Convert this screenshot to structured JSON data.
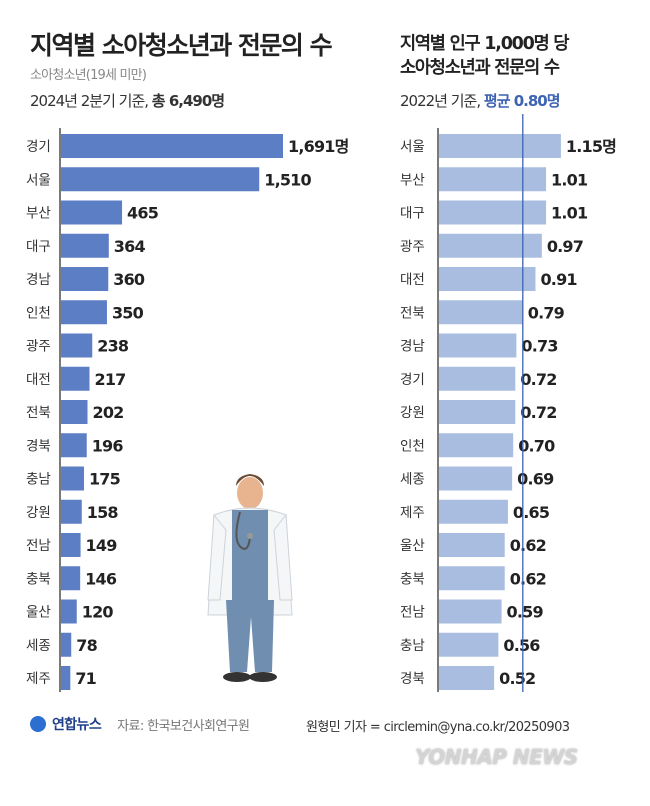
{
  "left_header": {
    "title": "지역별 소아청소년과 전문의 수",
    "subtitle": "소아청소년(19세 미만)",
    "basis": "2024년 2분기 기준, ",
    "total": "총 6,490명"
  },
  "right_header": {
    "title_line1": "지역별 인구 1,000명 당",
    "title_line2": "소아청소년과 전문의 수",
    "basis": "2022년 기준, ",
    "average": "평균 0.80명"
  },
  "footer": {
    "logo": "연합뉴스",
    "source": "자료: 한국보건사회연구원",
    "credit": "원형민 기자 = circlemin@yna.co.kr/20250903",
    "watermark": "YONHAP NEWS"
  },
  "colors": {
    "left_bar": "#5b7ec5",
    "right_bar": "#a9bde0",
    "average_line": "#3d63b3",
    "accent": "#3d63b3"
  },
  "chart_data": [
    {
      "type": "bar",
      "orientation": "horizontal",
      "unit": "명",
      "categories": [
        "경기",
        "서울",
        "부산",
        "대구",
        "경남",
        "인천",
        "광주",
        "대전",
        "전북",
        "경북",
        "충남",
        "강원",
        "전남",
        "충북",
        "울산",
        "세종",
        "제주"
      ],
      "values": [
        1691,
        1510,
        465,
        364,
        360,
        350,
        238,
        217,
        202,
        196,
        175,
        158,
        149,
        146,
        120,
        78,
        71
      ],
      "labels": [
        "1,691명",
        "1,510",
        "465",
        "364",
        "360",
        "350",
        "238",
        "217",
        "202",
        "196",
        "175",
        "158",
        "149",
        "146",
        "120",
        "78",
        "71"
      ]
    },
    {
      "type": "bar",
      "orientation": "horizontal",
      "unit": "명",
      "average": 0.8,
      "categories": [
        "서울",
        "부산",
        "대구",
        "광주",
        "대전",
        "전북",
        "경남",
        "경기",
        "강원",
        "인천",
        "세종",
        "제주",
        "울산",
        "충북",
        "전남",
        "충남",
        "경북"
      ],
      "values": [
        1.15,
        1.01,
        1.01,
        0.97,
        0.91,
        0.79,
        0.73,
        0.72,
        0.72,
        0.7,
        0.69,
        0.65,
        0.62,
        0.62,
        0.59,
        0.56,
        0.52
      ],
      "labels": [
        "1.15명",
        "1.01",
        "1.01",
        "0.97",
        "0.91",
        "0.79",
        "0.73",
        "0.72",
        "0.72",
        "0.70",
        "0.69",
        "0.65",
        "0.62",
        "0.62",
        "0.59",
        "0.56",
        "0.52"
      ]
    }
  ]
}
